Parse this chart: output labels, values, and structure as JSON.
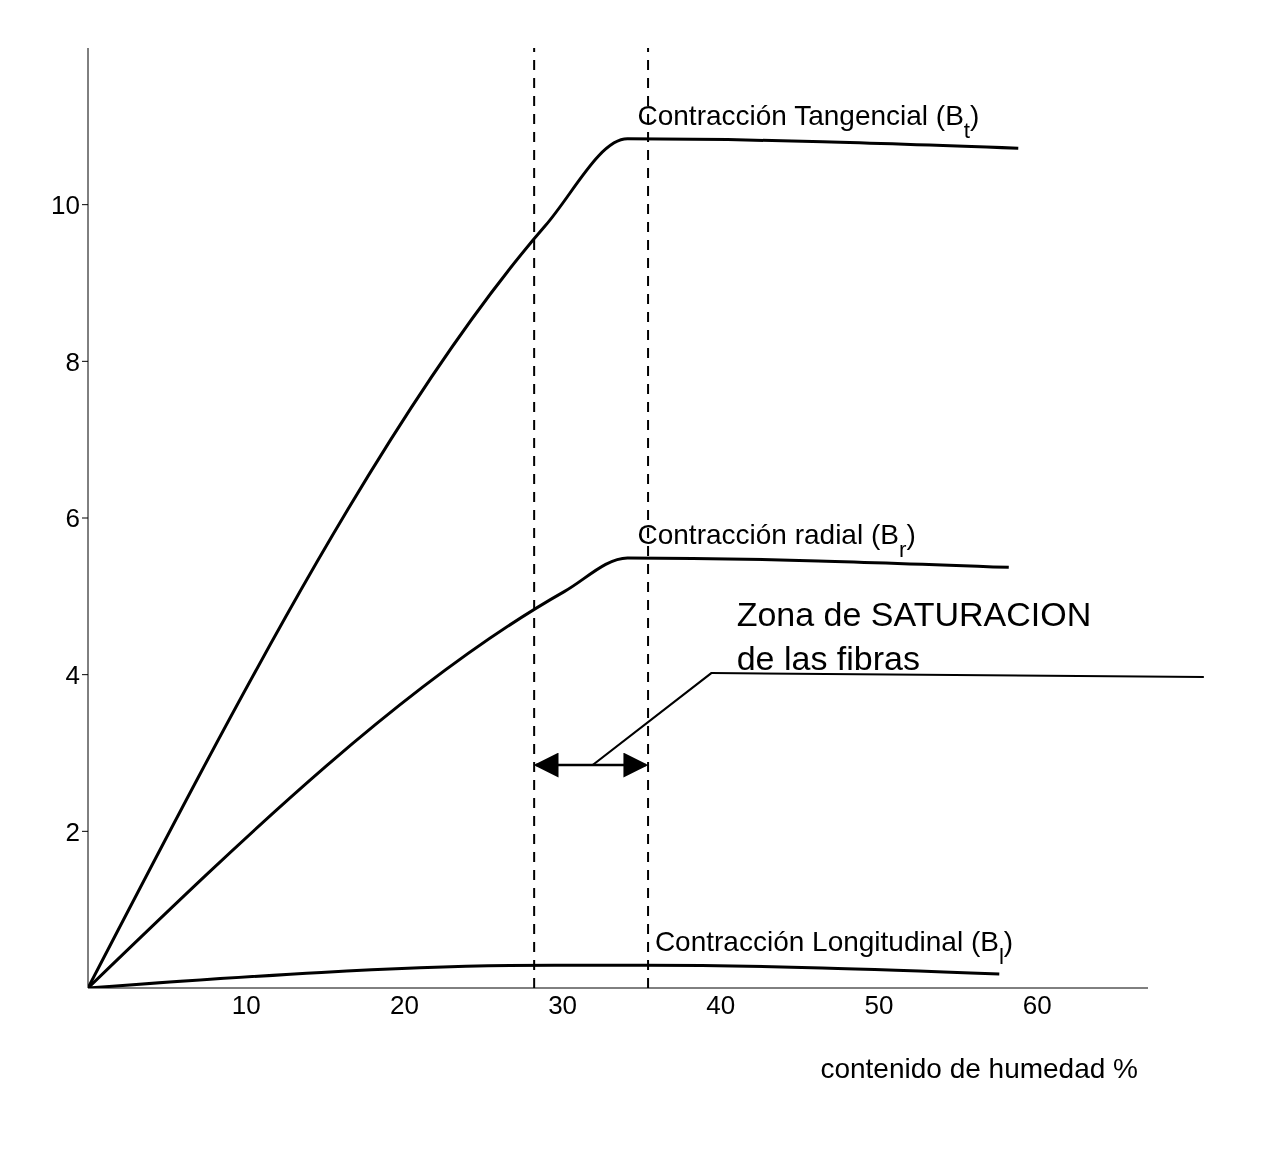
{
  "chart_data": {
    "type": "line",
    "xlabel": "contenido de humedad %",
    "xlim": [
      0,
      67
    ],
    "ylim": [
      0,
      12
    ],
    "xticks": [
      10,
      20,
      30,
      40,
      50,
      60
    ],
    "yticks": [
      2,
      4,
      6,
      8,
      10
    ],
    "grid": false,
    "legend": false,
    "marker": "none",
    "line_style": "solid",
    "series": [
      {
        "name": "Contracción Tangencial (B$_{t}$)",
        "color": "#000000",
        "x": [
          0,
          28.9,
          34.1,
          58.8
        ],
        "values": [
          0,
          9.73,
          10.84,
          10.72
        ]
      },
      {
        "name": "Contracción radial (B$_{r}$)",
        "color": "#000000",
        "x": [
          0,
          30.1,
          34.1,
          58.2
        ],
        "values": [
          0,
          5.06,
          5.49,
          5.37
        ]
      },
      {
        "name": "Contracción Longitudinal (B$_{l}$)",
        "color": "#000000",
        "x": [
          0,
          29.5,
          35.2,
          57.6
        ],
        "values": [
          0,
          0.29,
          0.29,
          0.18
        ]
      }
    ],
    "ref_lines": [
      {
        "axis": "x",
        "value": 28.2,
        "line_style": "dashed",
        "color": "#000000"
      },
      {
        "axis": "x",
        "value": 35.4,
        "line_style": "dashed",
        "color": "#000000"
      }
    ],
    "annotations": [
      "Zona de SATURACION de las fibras"
    ]
  }
}
